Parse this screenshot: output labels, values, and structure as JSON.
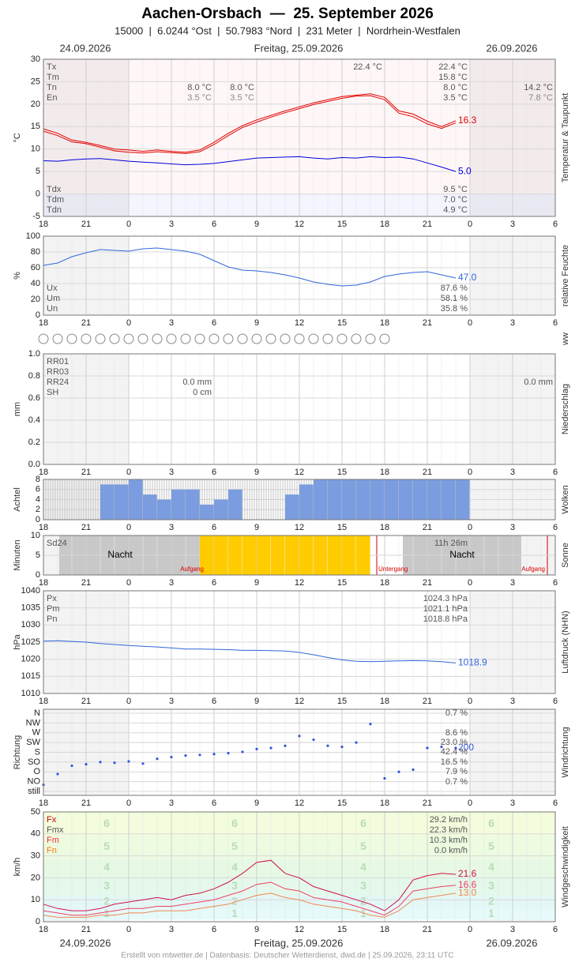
{
  "title": "Aachen-Orsbach  —  25. September 2026",
  "subtitle": "15000  |  6.0244 °Ost  |  50.7983 °Nord  |  231 Meter  |  Nordrhein-Westfalen",
  "dates": [
    "24.09.2026",
    "Freitag, 25.09.2026",
    "26.09.2026"
  ],
  "footer": "Erstellt von mtwetter.de | Datenbasis: Deutscher Wetterdienst, dwd.de | 25.09.2026, 23:11 UTC",
  "ww_label": "ww",
  "time_axis": {
    "xlim": [
      18,
      54
    ],
    "xticks": [
      18,
      21,
      {
        "value": 24,
        "label": "0"
      },
      {
        "value": 27,
        "label": "3"
      },
      {
        "value": 30,
        "label": "6"
      },
      {
        "value": 33,
        "label": "9"
      },
      {
        "value": 36,
        "label": "12"
      },
      {
        "value": 39,
        "label": "15"
      },
      {
        "value": 42,
        "label": "18"
      },
      {
        "value": 45,
        "label": "21"
      },
      {
        "value": 48,
        "label": "0"
      },
      {
        "value": 51,
        "label": "3"
      },
      {
        "value": 54,
        "label": "6"
      }
    ]
  },
  "chart_data": [
    {
      "type": "line",
      "y_label": "°C",
      "side_label": "Temperatur & Taupunkt",
      "x": [
        18,
        19,
        20,
        21,
        22,
        23,
        24,
        25,
        26,
        27,
        28,
        29,
        30,
        31,
        32,
        33,
        34,
        35,
        36,
        37,
        38,
        39,
        40,
        41,
        42,
        43,
        44,
        45,
        46,
        47
      ],
      "series": [
        {
          "color": "#e00000",
          "values": [
            14.5,
            13.5,
            12,
            11.5,
            10.8,
            10,
            9.8,
            9.5,
            9.8,
            9.5,
            9.3,
            9.8,
            11.5,
            13.5,
            15.2,
            16.5,
            17.5,
            18.5,
            19.4,
            20.3,
            21,
            21.7,
            22,
            22.3,
            21.5,
            18.5,
            17.8,
            16.2,
            15,
            16.3
          ],
          "end_label": "16.3"
        },
        {
          "color": "#e00000",
          "values": [
            14,
            13,
            11.6,
            11.2,
            10.4,
            9.6,
            9.3,
            9.1,
            9.4,
            9.2,
            9,
            9.4,
            11,
            13,
            14.8,
            16,
            17.1,
            18.1,
            19,
            19.9,
            20.6,
            21.3,
            21.8,
            21.9,
            21,
            18,
            17.2,
            15.6,
            14.6,
            15.8
          ]
        },
        {
          "color": "#0000dd",
          "values": [
            7.4,
            7.3,
            7.6,
            7.8,
            7.9,
            7.6,
            7.3,
            7.1,
            6.9,
            6.7,
            6.5,
            6.6,
            6.8,
            7.2,
            7.6,
            8,
            8.1,
            8.2,
            8.3,
            8,
            7.8,
            8.1,
            8,
            8.3,
            8.1,
            8.2,
            7.8,
            6.9,
            6,
            5
          ],
          "end_label": "5.0"
        }
      ],
      "ylim": [
        -5,
        30
      ],
      "yticks": [
        -5,
        0,
        5,
        10,
        15,
        20,
        25,
        30
      ],
      "grid": true,
      "stats": [
        {
          "label": "Tx",
          "text": "22.4 °C"
        },
        {
          "label": "Tm",
          "text": "15.8 °C"
        },
        {
          "label": "Tn",
          "text": "8.0 °C"
        },
        {
          "label": "En",
          "text": "3.5 °C"
        }
      ],
      "stats2": [
        {
          "label": "Tdx",
          "text": "9.5 °C"
        },
        {
          "label": "Tdm",
          "text": "7.0 °C"
        },
        {
          "label": "Tdn",
          "text": "4.9 °C"
        }
      ],
      "notes": [
        "22.4 °C",
        "8.0 °C",
        "3.5 °C",
        "8.0 °C",
        "3.5 °C",
        "14.2 °C",
        "7.8 °C"
      ]
    },
    {
      "type": "line",
      "y_label": "%",
      "side_label": "relative Feuchte",
      "x": [
        18,
        19,
        20,
        21,
        22,
        23,
        24,
        25,
        26,
        27,
        28,
        29,
        30,
        31,
        32,
        33,
        34,
        35,
        36,
        37,
        38,
        39,
        40,
        41,
        42,
        43,
        44,
        45,
        46,
        47
      ],
      "series": [
        {
          "color": "#3366dd",
          "values": [
            63,
            66,
            74,
            79,
            83,
            82,
            81,
            84,
            85,
            83,
            81,
            77,
            69,
            61,
            57,
            56,
            54,
            51,
            47,
            42,
            39,
            37,
            38,
            42,
            49,
            52,
            54,
            55,
            51,
            47
          ],
          "end_label": "47.0"
        }
      ],
      "ylim": [
        0,
        100
      ],
      "yticks": [
        0,
        20,
        40,
        60,
        80,
        100
      ],
      "grid": true,
      "stats": [
        {
          "label": "Ux",
          "text": "87.6 %"
        },
        {
          "label": "Um",
          "text": "58.1 %"
        },
        {
          "label": "Un",
          "text": "35.8 %"
        }
      ]
    },
    {
      "type": "bar",
      "y_label": "mm",
      "side_label": "Niederschlag",
      "color": "#3366cc",
      "x": [
        18,
        19,
        20,
        21,
        22,
        23,
        24,
        25,
        26,
        27,
        28,
        29,
        30,
        31,
        32,
        33,
        34,
        35,
        36,
        37,
        38,
        39,
        40,
        41,
        42,
        43,
        44,
        45,
        46,
        47
      ],
      "values": [
        0,
        0,
        0,
        0,
        0,
        0,
        0,
        0,
        0,
        0,
        0,
        0,
        0,
        0,
        0,
        0,
        0,
        0,
        0,
        0,
        0,
        0,
        0,
        0,
        0,
        0,
        0,
        0,
        0,
        0
      ],
      "ylim": [
        0,
        1
      ],
      "yticks": [
        {
          "value": 0,
          "label": "0.0"
        },
        0.2,
        0.4,
        0.6,
        0.8,
        {
          "value": 1,
          "label": "1.0"
        }
      ],
      "grid": true,
      "stats": [
        {
          "label": "RR01"
        },
        {
          "label": "RR03"
        },
        {
          "label": "RR24"
        },
        {
          "label": "SH"
        }
      ],
      "notes": [
        "0.0 mm",
        "0 cm",
        "0.0 mm"
      ]
    },
    {
      "type": "bar",
      "y_label": "Achtel",
      "side_label": "Wolken",
      "color": "#7b9de0",
      "x": [
        18,
        19,
        20,
        21,
        22,
        23,
        24,
        25,
        26,
        27,
        28,
        29,
        30,
        31,
        32,
        33,
        34,
        35,
        36,
        37,
        38,
        39,
        40,
        41,
        42,
        43,
        44,
        45,
        46,
        47
      ],
      "values": [
        0,
        0,
        0,
        0,
        7,
        7,
        8,
        5,
        4,
        6,
        6,
        3,
        4,
        6,
        0,
        0,
        0,
        5,
        7,
        8,
        8,
        8,
        8,
        8,
        8,
        8,
        8,
        8,
        8,
        8
      ],
      "ylim": [
        0,
        8
      ],
      "yticks": [
        0,
        2,
        4,
        6,
        8
      ],
      "grid": true
    },
    {
      "type": "bar",
      "y_label": "Minuten",
      "side_label": "Sonne",
      "color": "#ffcc00",
      "x": [
        18,
        19,
        20,
        21,
        22,
        23,
        24,
        25,
        26,
        27,
        28,
        29,
        30,
        31,
        32,
        33,
        34,
        35,
        36,
        37,
        38,
        39,
        40,
        41,
        42,
        43,
        44,
        45,
        46,
        47
      ],
      "values": [
        0,
        0,
        0,
        0,
        0,
        0,
        0,
        0,
        0,
        0,
        0,
        10,
        10,
        10,
        10,
        10,
        10,
        10,
        10,
        10,
        10,
        10,
        10,
        0,
        0,
        0,
        0,
        0,
        0,
        0
      ],
      "ylim": [
        0,
        10
      ],
      "yticks": [
        0,
        5,
        10
      ],
      "grid": true,
      "stats": [
        {
          "label": "Sd24"
        }
      ],
      "notes": [
        "Nacht",
        "Aufgang",
        "Untergang",
        "11h 26m",
        "Nacht",
        "Aufgang"
      ]
    },
    {
      "type": "line",
      "y_label": "hPa",
      "side_label": "Luftdruck (NHN)",
      "x": [
        18,
        19,
        20,
        21,
        22,
        23,
        24,
        25,
        26,
        27,
        28,
        29,
        30,
        31,
        32,
        33,
        34,
        35,
        36,
        37,
        38,
        39,
        40,
        41,
        42,
        43,
        44,
        45,
        46,
        47
      ],
      "series": [
        {
          "color": "#3366dd",
          "values": [
            1025.3,
            1025.4,
            1025.2,
            1025,
            1024.6,
            1024.3,
            1024,
            1023.8,
            1023.6,
            1023.3,
            1023,
            1023,
            1022.9,
            1022.8,
            1022.6,
            1022.6,
            1022.5,
            1022.4,
            1022,
            1021.3,
            1020.5,
            1019.8,
            1019.4,
            1019.3,
            1019.4,
            1019.5,
            1019.6,
            1019.5,
            1019.3,
            1018.9
          ],
          "end_label": "1018.9"
        }
      ],
      "ylim": [
        1010,
        1040
      ],
      "yticks": [
        1010,
        1015,
        1020,
        1025,
        1030,
        1035,
        1040
      ],
      "grid": true,
      "stats": [
        {
          "label": "Px",
          "text": "1024.3 hPa"
        },
        {
          "label": "Pm",
          "text": "1021.1 hPa"
        },
        {
          "label": "Pn",
          "text": "1018.8 hPa"
        }
      ]
    },
    {
      "type": "scatter",
      "y_label": "Richtung",
      "side_label": "Windrichtung",
      "color": "#3355dd",
      "x": [
        18,
        19,
        20,
        21,
        22,
        23,
        24,
        25,
        26,
        27,
        28,
        29,
        30,
        31,
        32,
        33,
        34,
        35,
        36,
        37,
        38,
        39,
        40,
        41,
        42,
        43,
        44,
        45,
        46,
        47
      ],
      "values": [
        30,
        80,
        118,
        125,
        135,
        132,
        138,
        128,
        150,
        158,
        165,
        168,
        172,
        176,
        182,
        195,
        200,
        210,
        255,
        238,
        210,
        205,
        225,
        310,
        60,
        90,
        100,
        200,
        205,
        200
      ],
      "end_label": "200",
      "ylim": [
        0,
        360
      ],
      "yticks": [
        {
          "value": 0,
          "label": "still"
        },
        {
          "value": 45,
          "label": "NO"
        },
        {
          "value": 90,
          "label": "O"
        },
        {
          "value": 135,
          "label": "SO"
        },
        {
          "value": 180,
          "label": "S"
        },
        {
          "value": 225,
          "label": "SW"
        },
        {
          "value": 270,
          "label": "W"
        },
        {
          "value": 315,
          "label": "NW"
        },
        {
          "value": 360,
          "label": "N"
        }
      ],
      "grid": true,
      "notes": [
        "0.7 %",
        "8.6 %",
        "23.0 %",
        "42.4 %",
        "16.5 %",
        "7.9 %",
        "0.7 %"
      ]
    },
    {
      "type": "line",
      "y_label": "km/h",
      "side_label": "Windgeschwindigkeit",
      "x": [
        18,
        19,
        20,
        21,
        22,
        23,
        24,
        25,
        26,
        27,
        28,
        29,
        30,
        31,
        32,
        33,
        34,
        35,
        36,
        37,
        38,
        39,
        40,
        41,
        42,
        43,
        44,
        45,
        46,
        47
      ],
      "series": [
        {
          "color": "#d0104c",
          "values": [
            8,
            6,
            5,
            5,
            6,
            8,
            9,
            10,
            11,
            10,
            12,
            13,
            15,
            18,
            22,
            27,
            28,
            22,
            20,
            16,
            14,
            12,
            10,
            8,
            5,
            10,
            19,
            21,
            22,
            21.6
          ],
          "end_label": "21.6"
        },
        {
          "color": "#f04060",
          "values": [
            5,
            4,
            3,
            3,
            4,
            5,
            6,
            6,
            7,
            7,
            8,
            9,
            10,
            12,
            14,
            17,
            18,
            15,
            14,
            11,
            10,
            9,
            7,
            5,
            3,
            7,
            14,
            15,
            16,
            16.6
          ],
          "end_label": "16.6"
        },
        {
          "color": "#f08850",
          "values": [
            3,
            2,
            2,
            2,
            3,
            3,
            4,
            4,
            5,
            5,
            5,
            6,
            7,
            8,
            10,
            12,
            13,
            11,
            10,
            8,
            7,
            6,
            5,
            3,
            2,
            5,
            10,
            11,
            12,
            13
          ],
          "end_label": "13.0"
        }
      ],
      "ylim": [
        0,
        50
      ],
      "yticks": [
        0,
        10,
        20,
        30,
        40,
        50
      ],
      "grid": true,
      "beaufort": [
        {
          "label": "1",
          "from": 1,
          "to": 6,
          "color": "#e6fafa"
        },
        {
          "label": "2",
          "from": 6,
          "to": 12,
          "color": "#e3f8f6"
        },
        {
          "label": "3",
          "from": 12,
          "to": 20,
          "color": "#e4f8ec"
        },
        {
          "label": "4",
          "from": 20,
          "to": 29,
          "color": "#e7f9e4"
        },
        {
          "label": "5",
          "from": 29,
          "to": 39,
          "color": "#edfbe0"
        },
        {
          "label": "6",
          "from": 39,
          "to": 50,
          "color": "#f3fcdc"
        }
      ],
      "stats": [
        {
          "label": "Fx",
          "text": "29.2 km/h",
          "color": "#cc0000"
        },
        {
          "label": "Fmx",
          "text": "22.3 km/h",
          "color": "#555555"
        },
        {
          "label": "Fm",
          "text": "10.3 km/h",
          "color": "#ee3333"
        },
        {
          "label": "Fn",
          "text": "0.0 km/h",
          "color": "#ff7700"
        }
      ]
    }
  ]
}
